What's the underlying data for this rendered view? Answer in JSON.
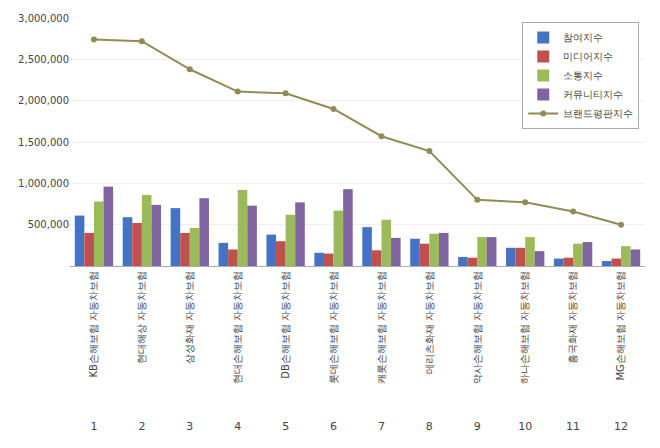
{
  "chart_data": {
    "type": "bar",
    "categories": [
      "KB손해보험 자동차보험",
      "현대해상 자동차보험",
      "삼성화재 자동차보험",
      "현대손해보험 자동차보험",
      "DB손해보험 자동차보험",
      "롯데손해보험 자동차보험",
      "캐롯손해보험 자동차보험",
      "메리츠화재 자동차보험",
      "악사손해보험 자동차보험",
      "하나손해보험 자동차보험",
      "흥국화재 자동차보험",
      "MG손해보험 자동차보험"
    ],
    "annotations": [
      {
        "x": "KB손해보험 자동차보험",
        "text": "1"
      },
      {
        "x": "현대해상 자동차보험",
        "text": "2"
      },
      {
        "x": "삼성화재 자동차보험",
        "text": "3"
      },
      {
        "x": "현대손해보험 자동차보험",
        "text": "4"
      },
      {
        "x": "DB손해보험 자동차보험",
        "text": "5"
      },
      {
        "x": "롯데손해보험 자동차보험",
        "text": "6"
      },
      {
        "x": "캐롯손해보험 자동차보험",
        "text": "7"
      },
      {
        "x": "메리츠화재 자동차보험",
        "text": "8"
      },
      {
        "x": "악사손해보험 자동차보험",
        "text": "9"
      },
      {
        "x": "하나손해보험 자동차보험",
        "text": "10"
      },
      {
        "x": "흥국화재 자동차보험",
        "text": "11"
      },
      {
        "x": "MG손해보험 자동차보험",
        "text": "12"
      }
    ],
    "series": [
      {
        "name": "참여지수",
        "type": "bar",
        "color": "#4472c4",
        "values": [
          610000,
          590000,
          700000,
          280000,
          380000,
          160000,
          470000,
          330000,
          110000,
          220000,
          90000,
          60000
        ]
      },
      {
        "name": "미디어지수",
        "type": "bar",
        "color": "#c0504d",
        "values": [
          400000,
          520000,
          400000,
          200000,
          300000,
          150000,
          190000,
          270000,
          100000,
          220000,
          100000,
          90000
        ]
      },
      {
        "name": "소통지수",
        "type": "bar",
        "color": "#9bbb59",
        "values": [
          780000,
          860000,
          460000,
          920000,
          620000,
          670000,
          560000,
          390000,
          350000,
          350000,
          270000,
          240000
        ]
      },
      {
        "name": "커뮤니티지수",
        "type": "bar",
        "color": "#8064a2",
        "values": [
          960000,
          740000,
          820000,
          730000,
          770000,
          930000,
          340000,
          400000,
          350000,
          180000,
          290000,
          200000
        ]
      },
      {
        "name": "브랜드평판지수",
        "type": "line",
        "color": "#948a54",
        "marker": "circle",
        "line_style": "solid",
        "values": [
          2740000,
          2720000,
          2380000,
          2110000,
          2090000,
          1900000,
          1570000,
          1390000,
          800000,
          770000,
          660000,
          500000
        ]
      }
    ],
    "ylim": [
      0,
      3000000
    ],
    "yticks": [
      {
        "value": 500000,
        "label": "500,000"
      },
      {
        "value": 1000000,
        "label": "1,000,000"
      },
      {
        "value": 1500000,
        "label": "1,500,000"
      },
      {
        "value": 2000000,
        "label": "2,000,000"
      },
      {
        "value": 2500000,
        "label": "2,500,000"
      },
      {
        "value": 3000000,
        "label": "3,000,000"
      }
    ],
    "grid": true,
    "legend": "upper right"
  }
}
